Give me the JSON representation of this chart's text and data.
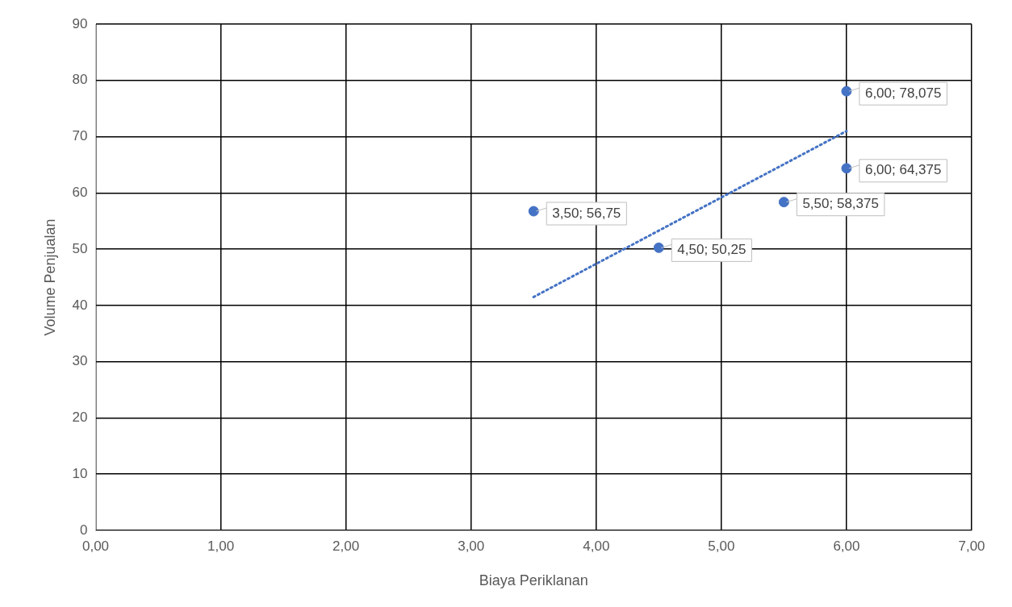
{
  "chart_data": {
    "type": "scatter",
    "xlabel": "Biaya Periklanan",
    "ylabel": "Volume Penjualan",
    "xlim": [
      0,
      7
    ],
    "xticks": [
      {
        "value": 0,
        "label": "0,00"
      },
      {
        "value": 1,
        "label": "1,00"
      },
      {
        "value": 2,
        "label": "2,00"
      },
      {
        "value": 3,
        "label": "3,00"
      },
      {
        "value": 4,
        "label": "4,00"
      },
      {
        "value": 5,
        "label": "5,00"
      },
      {
        "value": 6,
        "label": "6,00"
      },
      {
        "value": 7,
        "label": "7,00"
      }
    ],
    "ylim": [
      0,
      90
    ],
    "yticks": [
      0,
      10,
      20,
      30,
      40,
      50,
      60,
      70,
      80,
      90
    ],
    "grid": true,
    "legend": false,
    "marker": "circle",
    "series": [
      {
        "color": "#4472c4",
        "x": [
          3.5,
          4.5,
          5.5,
          6,
          6
        ],
        "values": [
          56.75,
          50.25,
          58.375,
          64.375,
          78.075
        ],
        "value_labels": [
          "3,50; 56,75",
          "4,50; 50,25",
          "5,50; 58,375",
          "6,00; 64,375",
          "6,00; 78,075"
        ]
      },
      {
        "type": "line",
        "color": "#4472c4",
        "x": [
          3.5,
          6
        ],
        "values": [
          41.5,
          71
        ],
        "line_style": "dotted",
        "marker": "none"
      }
    ]
  }
}
